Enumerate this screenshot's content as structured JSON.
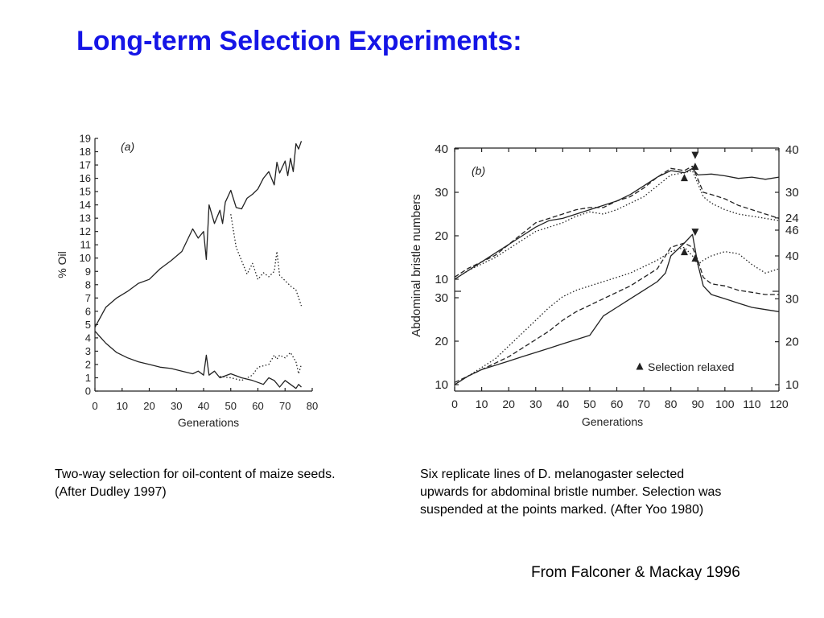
{
  "slide": {
    "title": "Long-term Selection Experiments:",
    "caption_a_lines": [
      "Two-way selection for oil-content of maize seeds.",
      "(After Dudley 1997)"
    ],
    "caption_b_lines": [
      "Six replicate lines of D. melanogaster selected",
      "upwards for abdominal bristle number. Selection was",
      "suspended at the points marked. (After Yoo 1980)"
    ],
    "credit": "From Falconer & Mackay 1996"
  },
  "chart_data": [
    {
      "type": "line",
      "panel_label": "(a)",
      "xlabel": "Generations",
      "ylabel": "% Oil",
      "xlim": [
        0,
        80
      ],
      "ylim": [
        0,
        19
      ],
      "x_ticks": [
        0,
        10,
        20,
        30,
        40,
        50,
        60,
        70,
        80
      ],
      "y_ticks": [
        0,
        1,
        2,
        3,
        4,
        5,
        6,
        7,
        8,
        9,
        10,
        11,
        12,
        13,
        14,
        15,
        16,
        17,
        18,
        19
      ],
      "grid": false,
      "series": [
        {
          "style": "solid",
          "x": [
            0,
            4,
            8,
            12,
            16,
            20,
            24,
            28,
            32,
            36,
            38,
            40,
            41,
            42,
            44,
            46,
            47,
            48,
            50,
            52,
            54,
            56,
            58,
            60,
            62,
            64,
            66,
            67,
            68,
            70,
            71,
            72,
            73,
            74,
            75,
            76
          ],
          "values": [
            4.8,
            6.3,
            7.0,
            7.5,
            8.1,
            8.4,
            9.2,
            9.8,
            10.5,
            12.2,
            11.5,
            12.0,
            9.9,
            14.0,
            12.6,
            13.6,
            12.6,
            14.2,
            15.1,
            13.8,
            13.7,
            14.5,
            14.8,
            15.2,
            16.0,
            16.5,
            15.5,
            17.2,
            16.4,
            17.3,
            16.2,
            17.5,
            16.5,
            18.6,
            18.2,
            18.8
          ]
        },
        {
          "style": "solid",
          "x": [
            0,
            4,
            8,
            12,
            16,
            20,
            24,
            28,
            32,
            36,
            38,
            40,
            41,
            42,
            44,
            46,
            50,
            54,
            58,
            62,
            64,
            66,
            68,
            70,
            72,
            74,
            75,
            76
          ],
          "values": [
            4.5,
            3.6,
            2.9,
            2.5,
            2.2,
            2.0,
            1.8,
            1.7,
            1.5,
            1.3,
            1.5,
            1.2,
            2.7,
            1.2,
            1.5,
            1.0,
            1.3,
            1.0,
            0.8,
            0.5,
            1.0,
            0.8,
            0.3,
            0.8,
            0.5,
            0.2,
            0.5,
            0.3
          ]
        },
        {
          "style": "dotted",
          "x": [
            50,
            52,
            54,
            56,
            58,
            60,
            62,
            64,
            66,
            67,
            68,
            70,
            72,
            74,
            76
          ],
          "values": [
            13.3,
            10.8,
            9.8,
            8.8,
            9.6,
            8.4,
            8.9,
            8.6,
            9.0,
            10.5,
            8.7,
            8.3,
            7.9,
            7.6,
            6.4
          ]
        },
        {
          "style": "dotted",
          "x": [
            46,
            50,
            54,
            58,
            60,
            62,
            64,
            66,
            67,
            68,
            70,
            72,
            74,
            75,
            76
          ],
          "values": [
            1.1,
            1.0,
            0.8,
            1.2,
            1.8,
            1.9,
            2.0,
            2.7,
            2.4,
            2.7,
            2.5,
            2.9,
            2.2,
            1.3,
            2.0
          ]
        }
      ]
    },
    {
      "type": "line",
      "panel_label": "(b)",
      "xlabel": "Generations",
      "ylabel": "Abdominal bristle numbers",
      "xlim": [
        0,
        120
      ],
      "x_ticks": [
        0,
        10,
        20,
        30,
        40,
        50,
        60,
        70,
        80,
        90,
        100,
        110,
        120
      ],
      "grid": false,
      "legend": {
        "label": "Selection relaxed",
        "marker": "triangle",
        "position": "bottom-center"
      },
      "panels": [
        {
          "position": "upper",
          "ylim": [
            10,
            40
          ],
          "y_ticks_left": [
            10,
            20,
            30,
            40
          ],
          "y_ticks_right": [
            24,
            30,
            40
          ],
          "markers": [
            {
              "x": 85,
              "y": 33.4,
              "marker": "triangle-up"
            },
            {
              "x": 89,
              "y": 38.5,
              "marker": "triangle-down"
            },
            {
              "x": 89,
              "y": 36.0,
              "marker": "triangle-up"
            }
          ],
          "series": [
            {
              "style": "solid",
              "x": [
                0,
                5,
                10,
                15,
                20,
                25,
                30,
                35,
                40,
                45,
                50,
                55,
                60,
                65,
                70,
                75,
                80,
                85,
                88,
                90,
                95,
                100,
                105,
                110,
                115,
                120
              ],
              "values": [
                10,
                12,
                14,
                16,
                18,
                20,
                22,
                23.5,
                24,
                25,
                26,
                27,
                28,
                29.5,
                31.5,
                33.5,
                35,
                34.5,
                35.5,
                34,
                34.2,
                33.8,
                33.2,
                33.5,
                33,
                33.5
              ]
            },
            {
              "style": "dashed",
              "x": [
                0,
                5,
                10,
                15,
                20,
                25,
                30,
                35,
                40,
                45,
                50,
                55,
                60,
                65,
                70,
                75,
                80,
                85,
                88,
                90,
                92,
                95,
                100,
                105,
                110,
                115,
                120
              ],
              "values": [
                10.5,
                12.5,
                14,
                15.5,
                18,
                20.5,
                23,
                24,
                25,
                26,
                26.5,
                26.5,
                28,
                29,
                31,
                33.5,
                35.5,
                35,
                36,
                33,
                30,
                29.5,
                28.5,
                27,
                26,
                25,
                24
              ]
            },
            {
              "style": "dotted",
              "x": [
                0,
                5,
                10,
                15,
                20,
                25,
                30,
                35,
                40,
                45,
                50,
                55,
                60,
                65,
                70,
                75,
                80,
                85,
                88,
                90,
                92,
                95,
                100,
                105,
                110,
                115,
                120
              ],
              "values": [
                10,
                12,
                13.5,
                15,
                17,
                19,
                21,
                22,
                23,
                24.5,
                25.5,
                25,
                26,
                27.5,
                29,
                31.5,
                34,
                34.5,
                35,
                32,
                29,
                27.5,
                26,
                25,
                24.5,
                24,
                23.5
              ]
            }
          ]
        },
        {
          "position": "lower",
          "ylim": [
            10,
            46
          ],
          "y_ticks_left": [
            10,
            20,
            30
          ],
          "y_ticks_right": [
            10,
            20,
            30,
            40,
            46
          ],
          "markers": [
            {
              "x": 85,
              "y": 41.0,
              "marker": "triangle-up"
            },
            {
              "x": 89,
              "y": 45.5,
              "marker": "triangle-down"
            },
            {
              "x": 89,
              "y": 39.5,
              "marker": "triangle-up"
            }
          ],
          "series": [
            {
              "style": "solid",
              "x": [
                0,
                5,
                10,
                15,
                20,
                25,
                30,
                35,
                40,
                45,
                50,
                55,
                60,
                65,
                70,
                75,
                78,
                80,
                85,
                88,
                90,
                92,
                95,
                100,
                105,
                110,
                115,
                120
              ],
              "values": [
                10,
                12,
                13.5,
                14.5,
                15.5,
                16.5,
                17.5,
                18.5,
                19.5,
                20.5,
                21.5,
                26,
                28,
                30,
                32,
                34,
                36,
                40,
                43,
                45,
                38,
                33,
                31,
                30,
                29,
                28,
                27.5,
                27
              ]
            },
            {
              "style": "dashed",
              "x": [
                0,
                5,
                10,
                15,
                20,
                25,
                30,
                35,
                40,
                45,
                50,
                55,
                60,
                65,
                70,
                75,
                80,
                85,
                88,
                90,
                92,
                95,
                100,
                105,
                110,
                115,
                120
              ],
              "values": [
                10.5,
                12,
                13.5,
                15,
                16.5,
                18.5,
                20.5,
                22.5,
                25,
                27,
                28.5,
                30,
                31.5,
                33,
                35,
                37,
                42,
                43,
                42,
                39,
                35,
                33.5,
                33,
                32,
                31.5,
                31,
                31
              ]
            },
            {
              "style": "dotted",
              "x": [
                0,
                5,
                10,
                15,
                20,
                25,
                30,
                35,
                40,
                45,
                50,
                55,
                60,
                65,
                70,
                75,
                80,
                85,
                88,
                90,
                92,
                95,
                100,
                105,
                110,
                115,
                120
              ],
              "values": [
                10,
                12,
                14,
                16,
                19,
                22,
                25,
                28,
                30.5,
                32,
                33,
                34,
                35,
                36,
                37.5,
                39,
                41,
                42,
                40,
                38,
                39,
                40,
                41,
                40.5,
                38,
                36,
                37
              ]
            }
          ]
        }
      ]
    }
  ]
}
